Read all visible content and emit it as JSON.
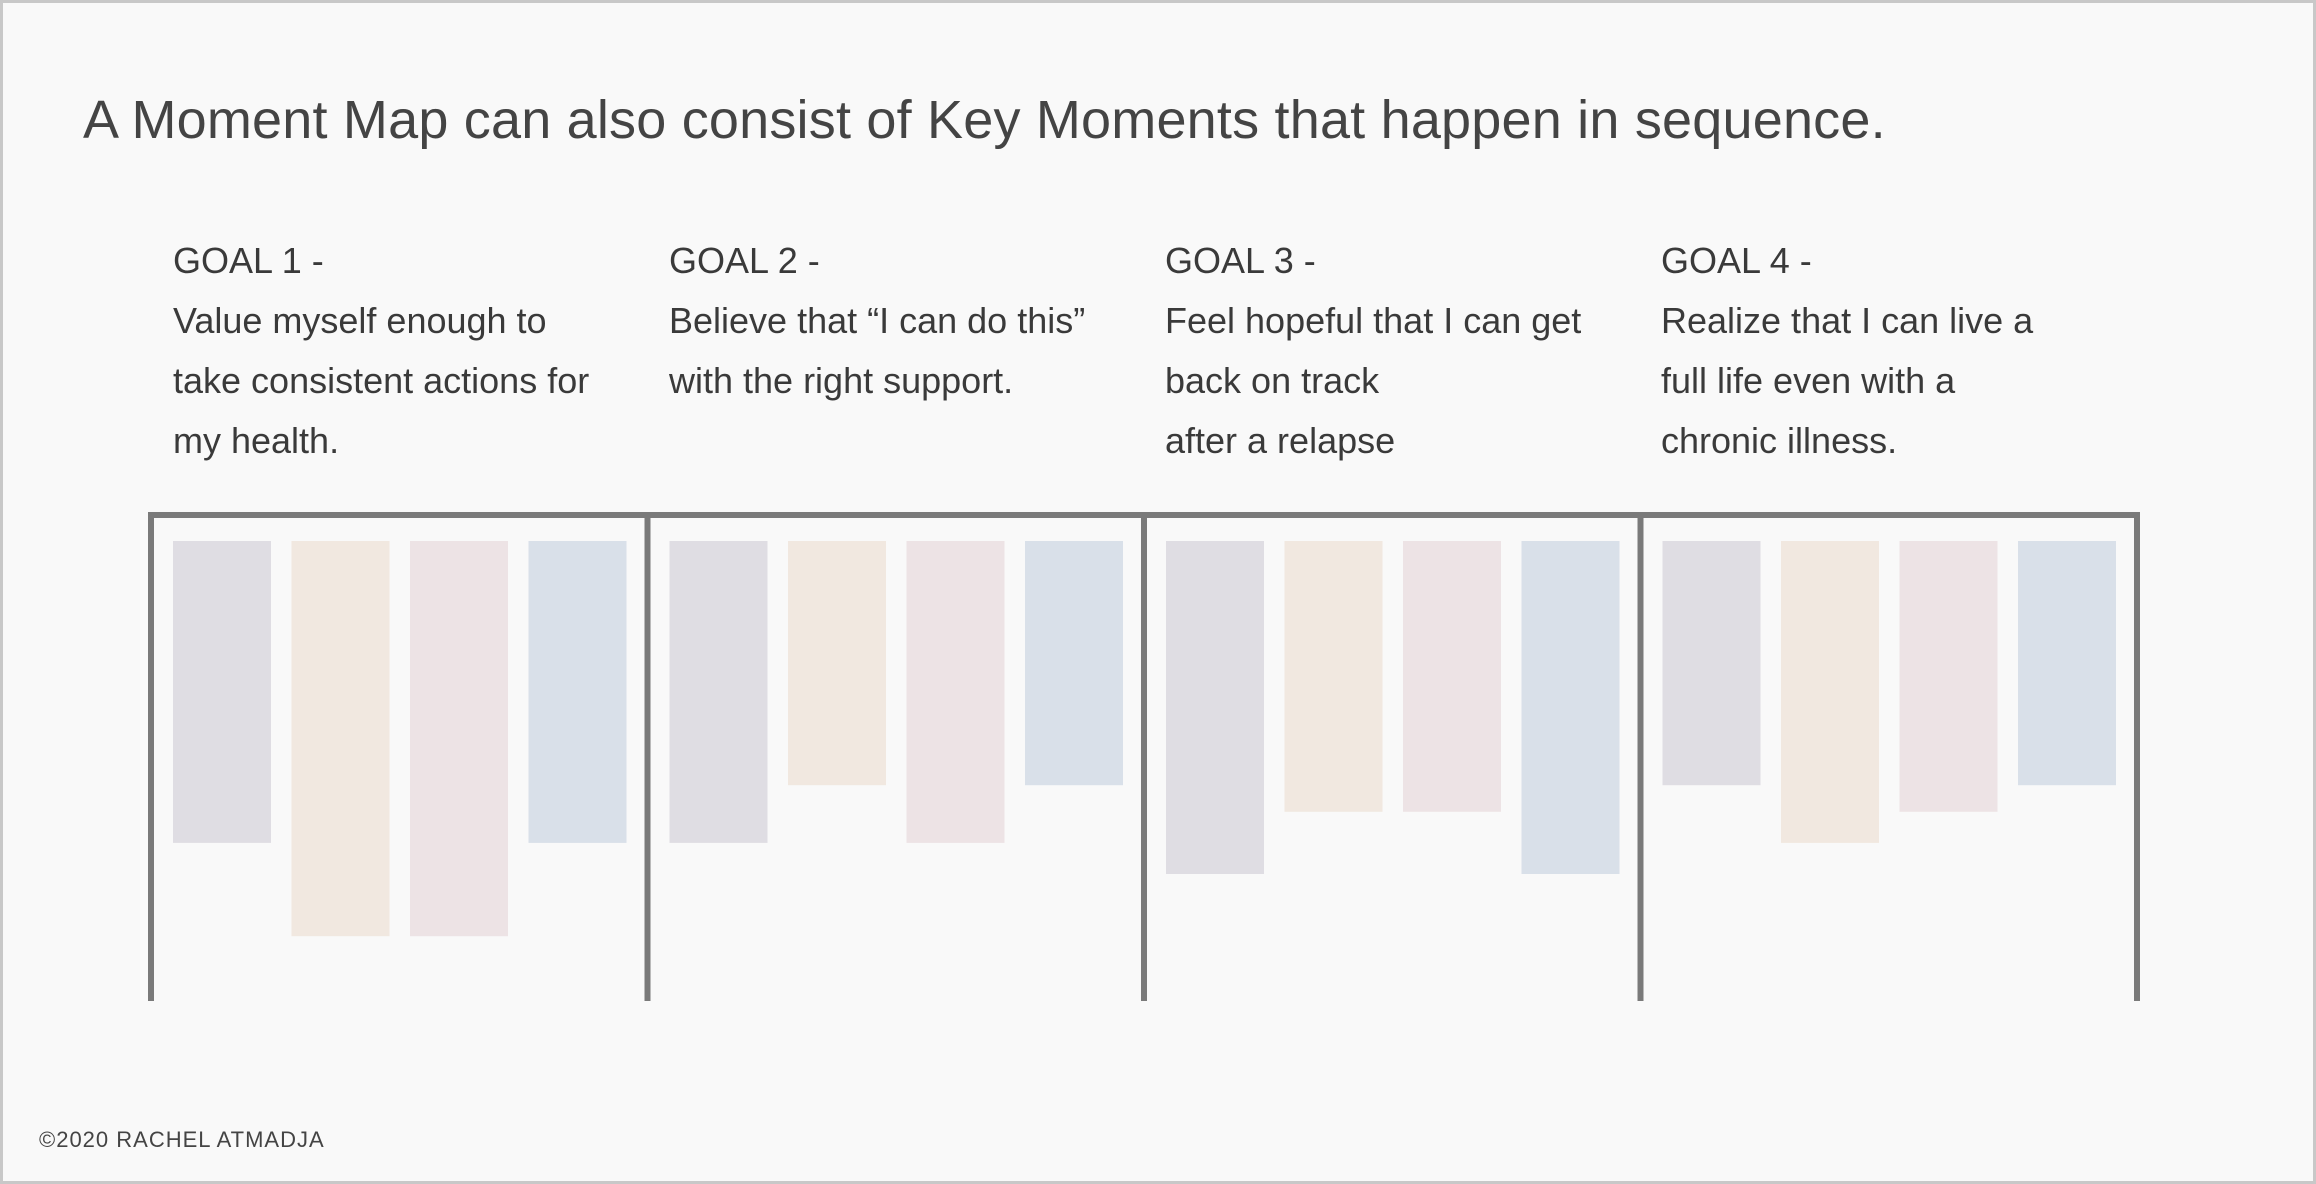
{
  "title": "A Moment Map can also consist of Key Moments that happen in sequence.",
  "goals": [
    {
      "label": "GOAL 1 -",
      "lines": [
        "Value myself enough to",
        "take consistent actions for",
        "my health."
      ],
      "moment_levels": [
        0.68,
        0.89,
        0.89,
        0.68
      ]
    },
    {
      "label": "GOAL 2 -",
      "lines": [
        "Believe that “I can do this”",
        "with the right support."
      ],
      "moment_levels": [
        0.68,
        0.55,
        0.68,
        0.55
      ]
    },
    {
      "label": "GOAL 3 -",
      "lines": [
        "Feel hopeful that I can get",
        "back on track",
        "after a relapse"
      ],
      "moment_levels": [
        0.75,
        0.61,
        0.61,
        0.75
      ]
    },
    {
      "label": "GOAL 4 -",
      "lines": [
        "Realize that I can live a",
        "full life even with a",
        "chronic illness."
      ],
      "moment_levels": [
        0.55,
        0.68,
        0.61,
        0.55
      ]
    }
  ],
  "moment_colors": [
    "#dfdde3",
    "#f1e8e0",
    "#ede3e5",
    "#d9e0e9"
  ],
  "bracket_color": "#7a7a7a",
  "footer": "©2020 RACHEL ATMADJA"
}
